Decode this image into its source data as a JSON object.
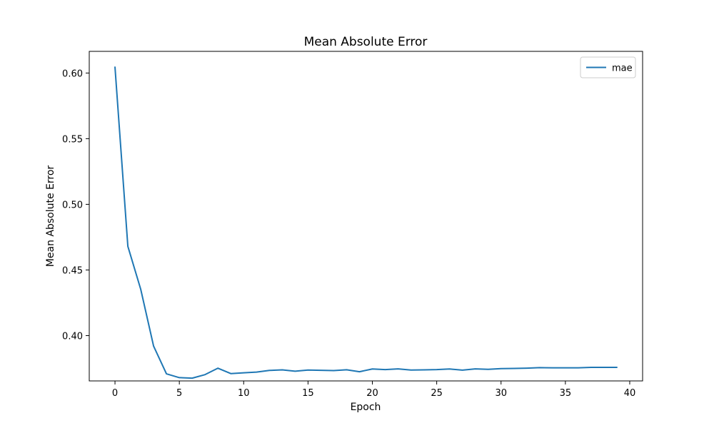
{
  "chart_data": {
    "type": "line",
    "title": "Mean Absolute Error",
    "xlabel": "Epoch",
    "ylabel": "Mean Absolute Error",
    "xlim": [
      -2,
      41
    ],
    "ylim": [
      0.3655,
      0.6165
    ],
    "xticks": [
      0,
      5,
      10,
      15,
      20,
      25,
      30,
      35,
      40
    ],
    "xtick_labels": [
      "0",
      "5",
      "10",
      "15",
      "20",
      "25",
      "30",
      "35",
      "40"
    ],
    "yticks": [
      0.4,
      0.45,
      0.5,
      0.55,
      0.6
    ],
    "ytick_labels": [
      "0.40",
      "0.45",
      "0.50",
      "0.55",
      "0.60"
    ],
    "grid": false,
    "legend_position": "upper right",
    "series": [
      {
        "name": "mae",
        "color": "#1f77b4",
        "x": [
          0,
          1,
          2,
          3,
          4,
          5,
          6,
          7,
          8,
          9,
          10,
          11,
          12,
          13,
          14,
          15,
          16,
          17,
          18,
          19,
          20,
          21,
          22,
          23,
          24,
          25,
          26,
          27,
          28,
          29,
          30,
          31,
          32,
          33,
          34,
          35,
          36,
          37,
          38,
          39
        ],
        "values": [
          0.6045,
          0.468,
          0.4353,
          0.392,
          0.3709,
          0.368,
          0.3676,
          0.3703,
          0.3752,
          0.3711,
          0.3717,
          0.3722,
          0.3735,
          0.3739,
          0.3729,
          0.3738,
          0.3736,
          0.3734,
          0.374,
          0.3725,
          0.3746,
          0.3741,
          0.3747,
          0.3738,
          0.3739,
          0.3741,
          0.3746,
          0.3737,
          0.3747,
          0.3743,
          0.3749,
          0.375,
          0.3752,
          0.3756,
          0.3755,
          0.3755,
          0.3755,
          0.3758,
          0.3758,
          0.3758
        ]
      }
    ]
  }
}
